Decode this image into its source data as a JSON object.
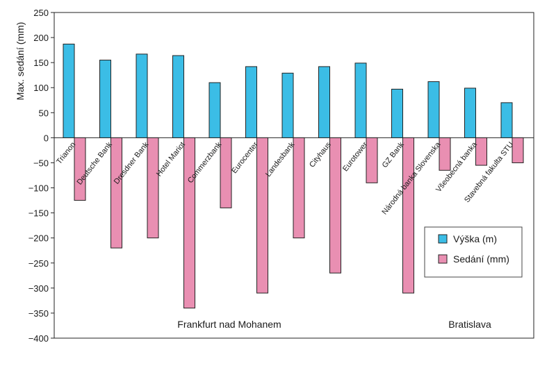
{
  "chart_data": {
    "type": "bar",
    "ylabel": "Max. sedání (mm)",
    "ylim": [
      -400,
      250
    ],
    "yticks": [
      250,
      200,
      150,
      100,
      50,
      0,
      -50,
      -100,
      -150,
      -200,
      -250,
      -300,
      -350,
      -400
    ],
    "grid": false,
    "legend_position": "right",
    "categories": [
      "Trianon",
      "Deutsche Bank",
      "Dresdner Bank",
      "Hotel Mariot",
      "Commerzbank",
      "Eurocenter",
      "Landesbank",
      "Cityhaus",
      "Eurotower",
      "GZ Bank",
      "Národná banka Slovenska",
      "Všeobecná banka",
      "Stavebná fakulta STU"
    ],
    "series": [
      {
        "name": "Výška (m)",
        "color": "#3bbde6",
        "values": [
          187,
          155,
          167,
          164,
          110,
          142,
          129,
          142,
          149,
          97,
          112,
          99,
          70
        ]
      },
      {
        "name": "Sedání (mm)",
        "color": "#e98fb2",
        "values": [
          -125,
          -220,
          -200,
          -340,
          -140,
          -310,
          -200,
          -270,
          -90,
          -310,
          -65,
          -55,
          -50
        ]
      }
    ],
    "group_labels": [
      "Frankfurt nad Mohanem",
      "Bratislava"
    ]
  }
}
